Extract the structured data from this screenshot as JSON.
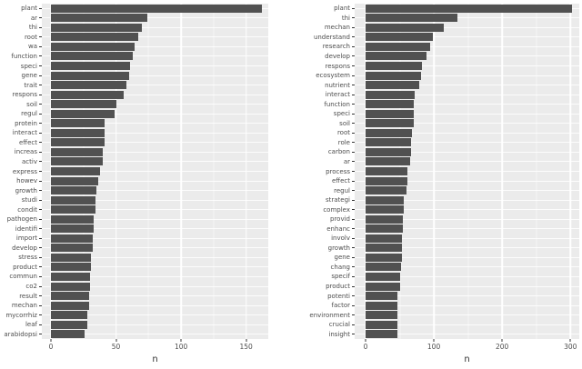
{
  "figure": {
    "background": "#ffffff",
    "panel_background": "#ebebeb",
    "grid_color": "#ffffff",
    "bar_color": "#515151",
    "axis_text_color": "#4d4d4d",
    "axis_title_color": "#333333"
  },
  "chart_data": [
    {
      "type": "bar",
      "orientation": "horizontal",
      "title": "",
      "xlabel": "n",
      "ylabel": "",
      "grid": true,
      "legend": false,
      "categories": [
        "plant",
        "ar",
        "thi",
        "root",
        "wa",
        "function",
        "speci",
        "gene",
        "trait",
        "respons",
        "soil",
        "regul",
        "protein",
        "interact",
        "effect",
        "increas",
        "activ",
        "express",
        "howev",
        "growth",
        "studi",
        "condit",
        "pathogen",
        "identifi",
        "import",
        "develop",
        "stress",
        "product",
        "commun",
        "co2",
        "result",
        "mechan",
        "mycorrhiz",
        "leaf",
        "arabidopsi"
      ],
      "values": [
        162,
        74,
        70,
        67,
        64,
        63,
        61,
        60,
        58,
        56,
        50,
        49,
        41,
        41,
        41,
        40,
        40,
        38,
        36,
        35,
        34,
        34,
        33,
        33,
        32,
        32,
        31,
        31,
        30,
        30,
        29,
        29,
        28,
        28,
        26
      ],
      "x_ticks": [
        0,
        50,
        100,
        150
      ],
      "x_minor_ticks": [
        25,
        75,
        125
      ],
      "xlim": [
        -7,
        167
      ]
    },
    {
      "type": "bar",
      "orientation": "horizontal",
      "title": "",
      "xlabel": "n",
      "ylabel": "",
      "grid": true,
      "legend": false,
      "categories": [
        "plant",
        "thi",
        "mechan",
        "understand",
        "research",
        "develop",
        "respons",
        "ecosystem",
        "nutrient",
        "interact",
        "function",
        "speci",
        "soil",
        "root",
        "role",
        "carbon",
        "ar",
        "process",
        "effect",
        "regul",
        "strategi",
        "complex",
        "provid",
        "enhanc",
        "involv",
        "growth",
        "gene",
        "chang",
        "specif",
        "product",
        "potenti",
        "factor",
        "environment",
        "crucial",
        "insight"
      ],
      "values": [
        302,
        135,
        115,
        99,
        94,
        89,
        83,
        81,
        79,
        72,
        71,
        70,
        70,
        68,
        67,
        67,
        65,
        61,
        61,
        60,
        56,
        56,
        55,
        55,
        53,
        53,
        53,
        52,
        50,
        50,
        47,
        47,
        46,
        46,
        46
      ],
      "x_ticks": [
        0,
        100,
        200,
        300
      ],
      "x_minor_ticks": [
        50,
        150,
        250
      ],
      "xlim": [
        -16,
        313
      ]
    }
  ]
}
